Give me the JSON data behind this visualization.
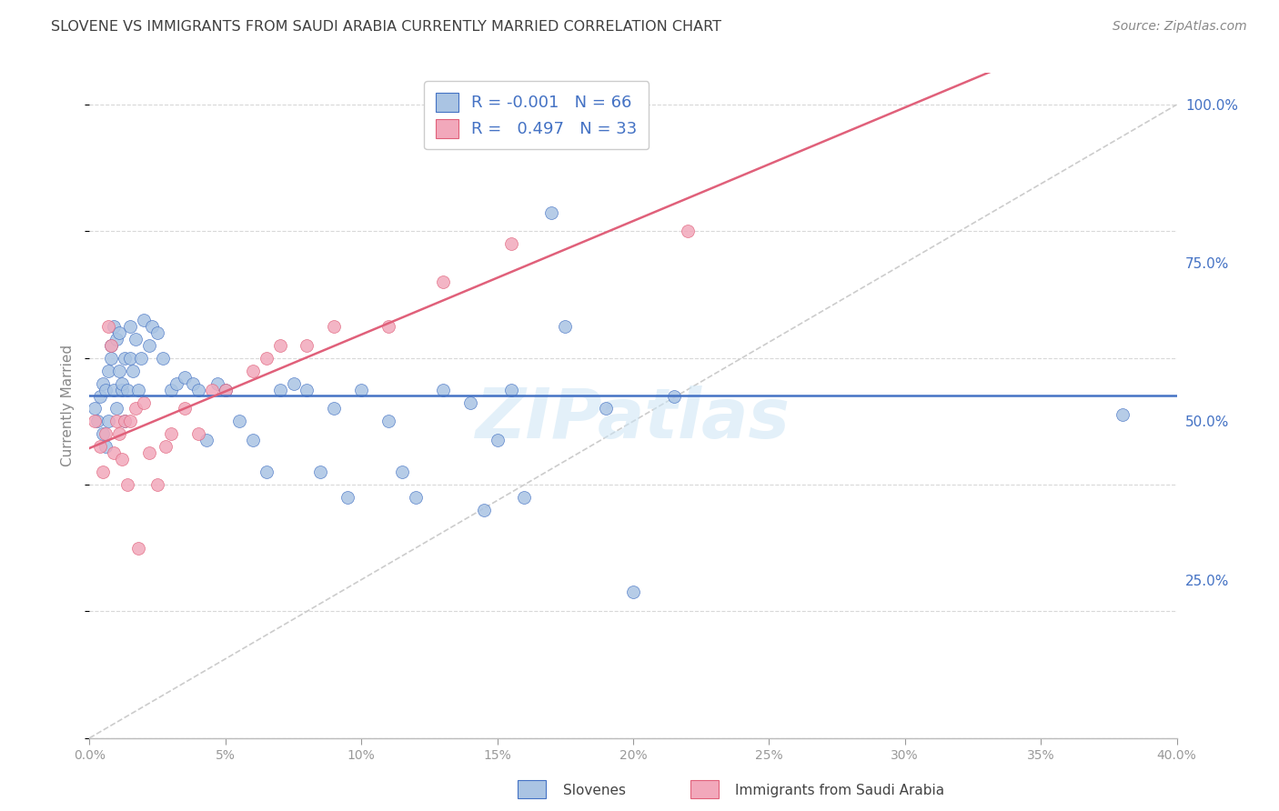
{
  "title": "SLOVENE VS IMMIGRANTS FROM SAUDI ARABIA CURRENTLY MARRIED CORRELATION CHART",
  "source": "Source: ZipAtlas.com",
  "ylabel": "Currently Married",
  "yticks": [
    0.0,
    0.25,
    0.5,
    0.75,
    1.0
  ],
  "ytick_labels": [
    "",
    "25.0%",
    "50.0%",
    "75.0%",
    "100.0%"
  ],
  "xticks": [
    0.0,
    0.05,
    0.1,
    0.15,
    0.2,
    0.25,
    0.3,
    0.35,
    0.4
  ],
  "xtick_labels": [
    "0.0%",
    "5%",
    "10%",
    "15%",
    "20%",
    "25%",
    "30%",
    "35%",
    "40%"
  ],
  "legend_slovene_R": "-0.001",
  "legend_slovene_N": "66",
  "legend_saudi_R": "0.497",
  "legend_saudi_N": "33",
  "slovene_color": "#aac4e3",
  "saudi_color": "#f2a8bb",
  "trend_slovene_color": "#4472c4",
  "trend_saudi_color": "#e0607a",
  "diag_color": "#cccccc",
  "background_color": "#ffffff",
  "grid_color": "#d8d8d8",
  "title_color": "#404040",
  "right_axis_color": "#4472c4",
  "slovene_x": [
    0.002,
    0.003,
    0.004,
    0.005,
    0.005,
    0.006,
    0.006,
    0.007,
    0.007,
    0.008,
    0.008,
    0.009,
    0.009,
    0.01,
    0.01,
    0.011,
    0.011,
    0.012,
    0.012,
    0.013,
    0.013,
    0.014,
    0.015,
    0.015,
    0.016,
    0.017,
    0.018,
    0.019,
    0.02,
    0.022,
    0.023,
    0.025,
    0.027,
    0.03,
    0.032,
    0.035,
    0.038,
    0.04,
    0.043,
    0.047,
    0.05,
    0.055,
    0.06,
    0.065,
    0.07,
    0.075,
    0.08,
    0.085,
    0.09,
    0.095,
    0.1,
    0.11,
    0.115,
    0.12,
    0.13,
    0.14,
    0.145,
    0.15,
    0.155,
    0.16,
    0.17,
    0.175,
    0.19,
    0.2,
    0.215,
    0.38
  ],
  "slovene_y": [
    0.52,
    0.5,
    0.54,
    0.56,
    0.48,
    0.55,
    0.46,
    0.58,
    0.5,
    0.62,
    0.6,
    0.55,
    0.65,
    0.52,
    0.63,
    0.64,
    0.58,
    0.55,
    0.56,
    0.6,
    0.5,
    0.55,
    0.6,
    0.65,
    0.58,
    0.63,
    0.55,
    0.6,
    0.66,
    0.62,
    0.65,
    0.64,
    0.6,
    0.55,
    0.56,
    0.57,
    0.56,
    0.55,
    0.47,
    0.56,
    0.55,
    0.5,
    0.47,
    0.42,
    0.55,
    0.56,
    0.55,
    0.42,
    0.52,
    0.38,
    0.55,
    0.5,
    0.42,
    0.38,
    0.55,
    0.53,
    0.36,
    0.47,
    0.55,
    0.38,
    0.83,
    0.65,
    0.52,
    0.23,
    0.54,
    0.51
  ],
  "saudi_x": [
    0.002,
    0.004,
    0.005,
    0.006,
    0.007,
    0.008,
    0.009,
    0.01,
    0.011,
    0.012,
    0.013,
    0.014,
    0.015,
    0.017,
    0.018,
    0.02,
    0.022,
    0.025,
    0.028,
    0.03,
    0.035,
    0.04,
    0.045,
    0.05,
    0.06,
    0.065,
    0.07,
    0.08,
    0.09,
    0.11,
    0.13,
    0.155,
    0.22
  ],
  "saudi_y": [
    0.5,
    0.46,
    0.42,
    0.48,
    0.65,
    0.62,
    0.45,
    0.5,
    0.48,
    0.44,
    0.5,
    0.4,
    0.5,
    0.52,
    0.3,
    0.53,
    0.45,
    0.4,
    0.46,
    0.48,
    0.52,
    0.48,
    0.55,
    0.55,
    0.58,
    0.6,
    0.62,
    0.62,
    0.65,
    0.65,
    0.72,
    0.78,
    0.8
  ],
  "xlim": [
    0.0,
    0.4
  ],
  "ylim": [
    0.0,
    1.05
  ],
  "watermark": "ZIPatlas",
  "figsize": [
    14.06,
    8.92
  ],
  "dpi": 100
}
